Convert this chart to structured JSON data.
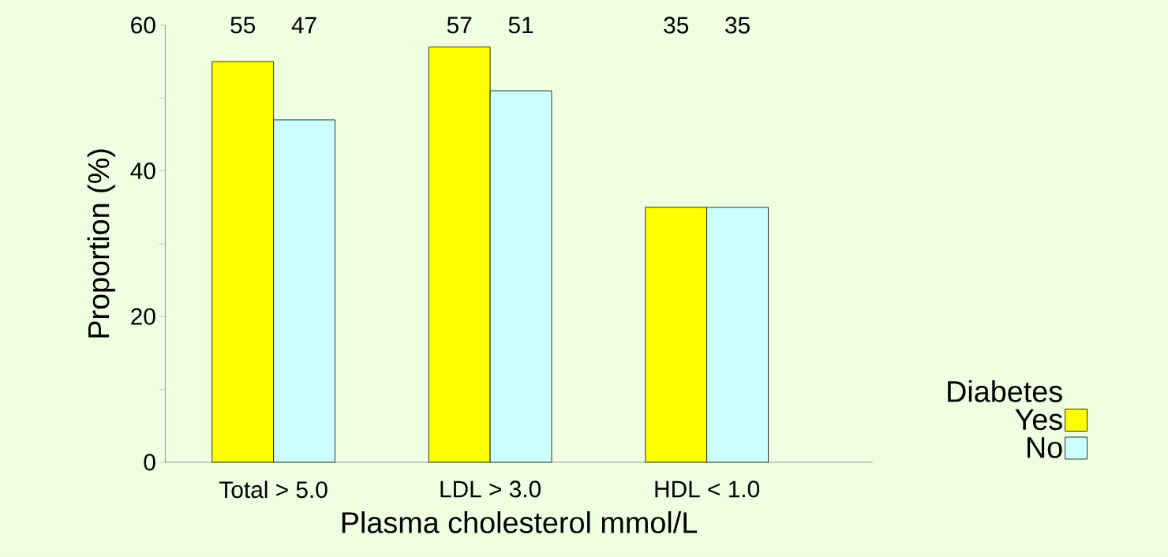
{
  "chart_data": {
    "type": "bar",
    "xlabel": "Plasma cholesterol mmol/L",
    "ylabel": "Proportion (%)",
    "categories": [
      "Total > 5.0",
      "LDL > 3.0",
      "HDL < 1.0"
    ],
    "series": [
      {
        "name": "Yes",
        "color": "#ffff00",
        "values": [
          55,
          57,
          35
        ]
      },
      {
        "name": "No",
        "color": "#ccffff",
        "values": [
          47,
          51,
          35
        ]
      }
    ],
    "ylim": [
      0,
      60
    ],
    "yticks": [
      0,
      {
        "value": 10,
        "label": null
      },
      20,
      {
        "value": 30,
        "label": null
      },
      40,
      {
        "value": 50,
        "label": null
      },
      60
    ],
    "annotations": [
      "55",
      "47",
      "57",
      "51",
      "35",
      "35"
    ],
    "legend": "right",
    "legend_title": "Diabetes"
  }
}
